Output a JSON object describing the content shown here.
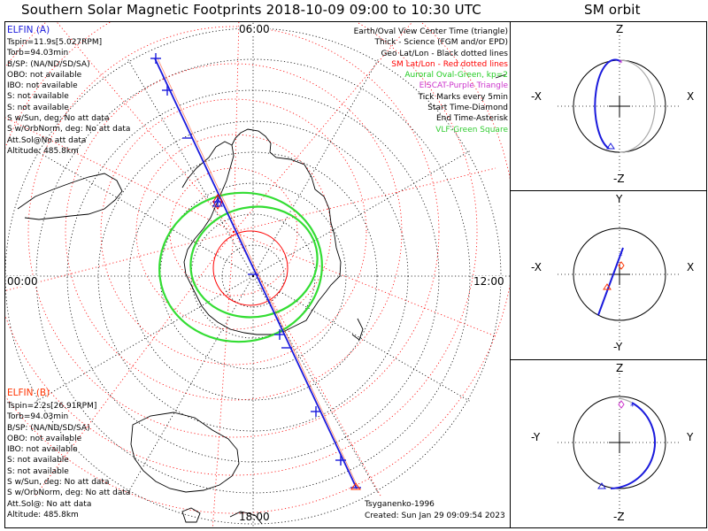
{
  "title": "Southern Solar Magnetic Footprints 2018-10-09 09:00 to 10:30 UTC",
  "orbit_title": "SM orbit",
  "map": {
    "top_label": "06:00",
    "left_label": "00:00",
    "right_label": "12:00",
    "bottom_label": "18:00"
  },
  "elfin_a": {
    "header": "ELFIN (A)",
    "lines": [
      "Tspin=11.9s[5.027RPM]",
      "Torb=94.03min",
      "B/SP: (NA/ND/SD/SA)",
      "OBO: not available",
      "IBO: not available",
      "S: not available",
      "S: not available",
      "S w/Sun, deg: No att data",
      "S w/OrbNorm, deg: No att data",
      "Att.Sol@No att data",
      "Altitude: 485.8km"
    ]
  },
  "elfin_b": {
    "header": "ELFIN (B)",
    "lines": [
      "Tspin=2.2s[26.91RPM]",
      "Torb=94.03min",
      "B/SP: (NA/ND/SD/SA)",
      "OBO: not available",
      "IBO: not available",
      "S: not available",
      "S: not available",
      "S w/Sun, deg: No att data",
      "S w/OrbNorm, deg: No att data",
      "Att.Sol@: No att data",
      "Altitude: 485.8km"
    ]
  },
  "legend": [
    {
      "text": "Earth/Oval View Center Time (triangle)",
      "color": "#000000"
    },
    {
      "text": "Thick - Science (FGM and/or EPD)",
      "color": "#000000"
    },
    {
      "text": "Geo Lat/Lon - Black dotted lines",
      "color": "#000000"
    },
    {
      "text": "SM Lat/Lon - Red dotted lines",
      "color": "#ff0000"
    },
    {
      "text": "Auroral Oval-Green, kp=2",
      "color": "#22cc22"
    },
    {
      "text": "EISCAT-Purple Triangle",
      "color": "#cc33cc"
    },
    {
      "text": "Tick Marks every 5min",
      "color": "#000000"
    },
    {
      "text": "Start Time-Diamond",
      "color": "#000000"
    },
    {
      "text": "End Time-Asterisk",
      "color": "#000000"
    },
    {
      "text": "VLF-Green Square",
      "color": "#33cc33"
    }
  ],
  "credits": {
    "author": "Tsyganenko-1996",
    "created": "Created: Sun Jan 29 09:09:54 2023"
  },
  "orbit_panels": [
    {
      "top": "Z",
      "bottom": "-Z",
      "left": "-X",
      "right": "X"
    },
    {
      "top": "Y",
      "bottom": "-Y",
      "left": "-X",
      "right": "X"
    },
    {
      "top": "Z",
      "bottom": "-Z",
      "left": "-Y",
      "right": "Y"
    }
  ],
  "colors": {
    "elfin_a": "#1a1adc",
    "elfin_b": "#ff3300",
    "sm_grid": "#ff0000",
    "oval": "#33dd33",
    "eiscat": "#cc33cc"
  }
}
